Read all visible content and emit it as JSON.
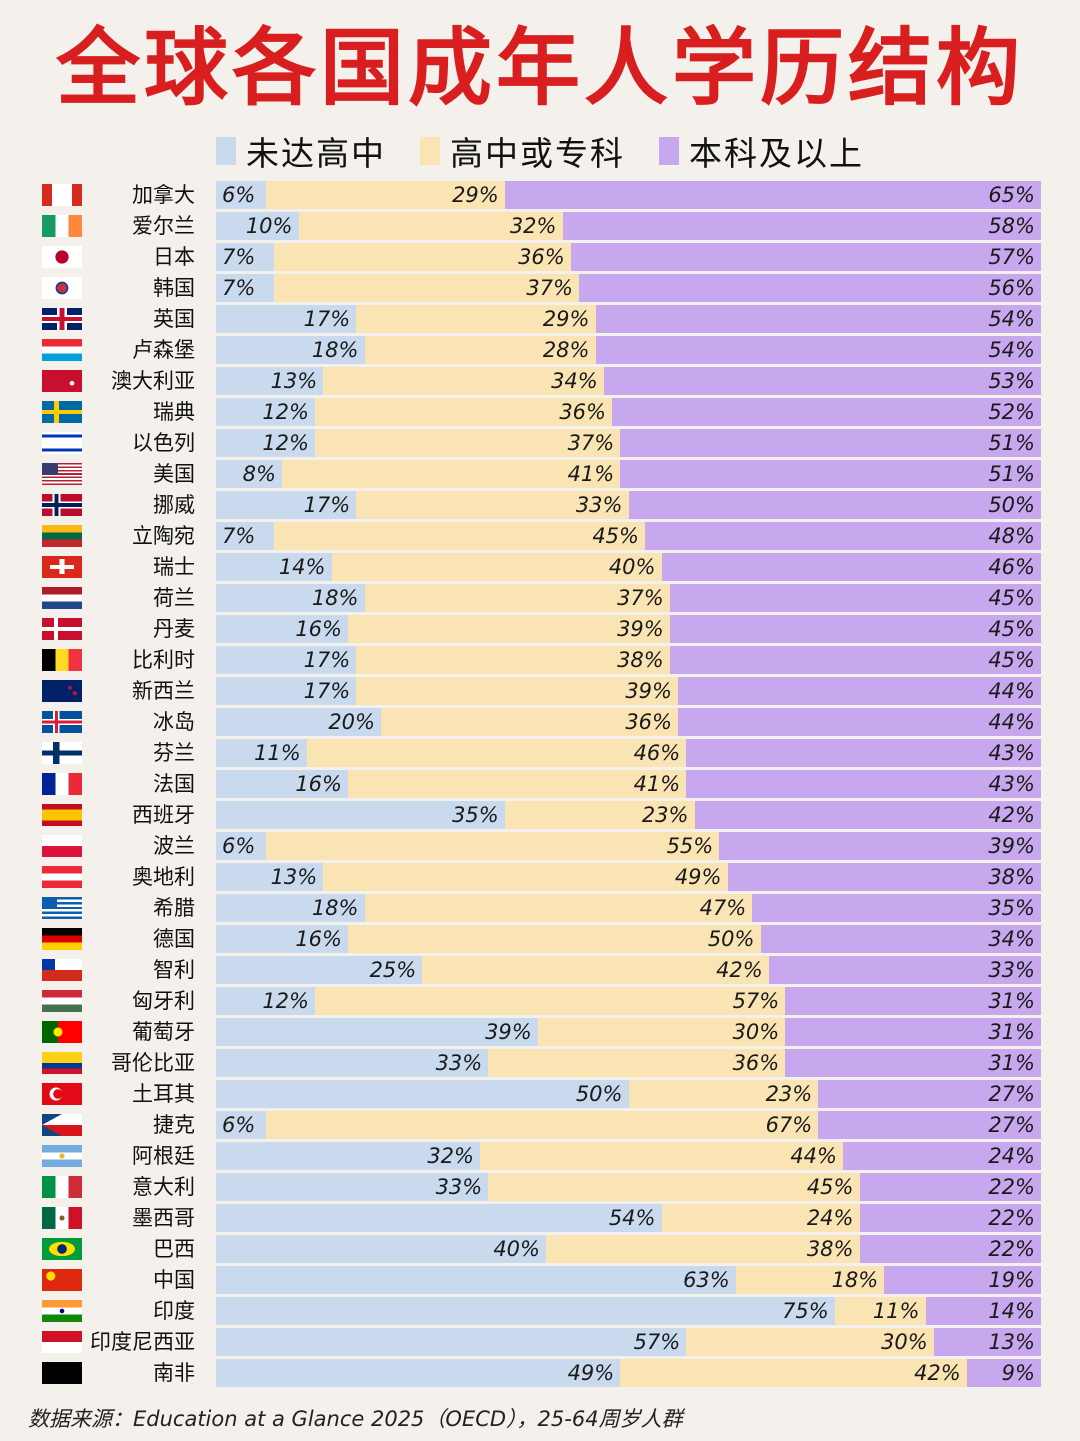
{
  "title": "全球各国成年人学历结构",
  "legend": {
    "items": [
      {
        "label": "未达高中",
        "color": "#c9daee"
      },
      {
        "label": "高中或专科",
        "color": "#fbe4b4"
      },
      {
        "label": "本科及以上",
        "color": "#c7a7ee"
      }
    ]
  },
  "source": "数据来源：Education at a Glance 2025（OECD），25-64周岁人群",
  "chart_data": {
    "type": "bar",
    "orientation": "horizontal-stacked-100",
    "title": "全球各国成年人学历结构",
    "series_names": [
      "未达高中",
      "高中或专科",
      "本科及以上"
    ],
    "colors": [
      "#c9daee",
      "#fbe4b4",
      "#c7a7ee"
    ],
    "rows": [
      {
        "country": "加拿大",
        "flag": "ca",
        "values": [
          6,
          29,
          65
        ]
      },
      {
        "country": "爱尔兰",
        "flag": "ie",
        "values": [
          10,
          32,
          58
        ]
      },
      {
        "country": "日本",
        "flag": "jp",
        "values": [
          7,
          36,
          57
        ]
      },
      {
        "country": "韩国",
        "flag": "kr",
        "values": [
          7,
          37,
          56
        ]
      },
      {
        "country": "英国",
        "flag": "gb",
        "values": [
          17,
          29,
          54
        ]
      },
      {
        "country": "卢森堡",
        "flag": "lu",
        "values": [
          18,
          28,
          54
        ]
      },
      {
        "country": "澳大利亚",
        "flag": "au",
        "values": [
          13,
          34,
          53
        ]
      },
      {
        "country": "瑞典",
        "flag": "se",
        "values": [
          12,
          36,
          52
        ]
      },
      {
        "country": "以色列",
        "flag": "il",
        "values": [
          12,
          37,
          51
        ]
      },
      {
        "country": "美国",
        "flag": "us",
        "values": [
          8,
          41,
          51
        ]
      },
      {
        "country": "挪威",
        "flag": "no",
        "values": [
          17,
          33,
          50
        ]
      },
      {
        "country": "立陶宛",
        "flag": "lt",
        "values": [
          7,
          45,
          48
        ]
      },
      {
        "country": "瑞士",
        "flag": "ch",
        "values": [
          14,
          40,
          46
        ]
      },
      {
        "country": "荷兰",
        "flag": "nl",
        "values": [
          18,
          37,
          45
        ]
      },
      {
        "country": "丹麦",
        "flag": "dk",
        "values": [
          16,
          39,
          45
        ]
      },
      {
        "country": "比利时",
        "flag": "be",
        "values": [
          17,
          38,
          45
        ]
      },
      {
        "country": "新西兰",
        "flag": "nz",
        "values": [
          17,
          39,
          44
        ]
      },
      {
        "country": "冰岛",
        "flag": "is",
        "values": [
          20,
          36,
          44
        ]
      },
      {
        "country": "芬兰",
        "flag": "fi",
        "values": [
          11,
          46,
          43
        ]
      },
      {
        "country": "法国",
        "flag": "fr",
        "values": [
          16,
          41,
          43
        ]
      },
      {
        "country": "西班牙",
        "flag": "es",
        "values": [
          35,
          23,
          42
        ]
      },
      {
        "country": "波兰",
        "flag": "pl",
        "values": [
          6,
          55,
          39
        ]
      },
      {
        "country": "奥地利",
        "flag": "at",
        "values": [
          13,
          49,
          38
        ]
      },
      {
        "country": "希腊",
        "flag": "gr",
        "values": [
          18,
          47,
          35
        ]
      },
      {
        "country": "德国",
        "flag": "de",
        "values": [
          16,
          50,
          34
        ]
      },
      {
        "country": "智利",
        "flag": "cl",
        "values": [
          25,
          42,
          33
        ]
      },
      {
        "country": "匈牙利",
        "flag": "hu",
        "values": [
          12,
          57,
          31
        ]
      },
      {
        "country": "葡萄牙",
        "flag": "pt",
        "values": [
          39,
          30,
          31
        ]
      },
      {
        "country": "哥伦比亚",
        "flag": "co",
        "values": [
          33,
          36,
          31
        ]
      },
      {
        "country": "土耳其",
        "flag": "tr",
        "values": [
          50,
          23,
          27
        ]
      },
      {
        "country": "捷克",
        "flag": "cz",
        "values": [
          6,
          67,
          27
        ]
      },
      {
        "country": "阿根廷",
        "flag": "ar",
        "values": [
          32,
          44,
          24
        ]
      },
      {
        "country": "意大利",
        "flag": "it",
        "values": [
          33,
          45,
          22
        ]
      },
      {
        "country": "墨西哥",
        "flag": "mx",
        "values": [
          54,
          24,
          22
        ]
      },
      {
        "country": "巴西",
        "flag": "br",
        "values": [
          40,
          38,
          22
        ]
      },
      {
        "country": "中国",
        "flag": "cn",
        "values": [
          63,
          18,
          19
        ]
      },
      {
        "country": "印度",
        "flag": "in",
        "values": [
          75,
          11,
          14
        ]
      },
      {
        "country": "印度尼西亚",
        "flag": "id",
        "values": [
          57,
          30,
          13
        ]
      },
      {
        "country": "南非",
        "flag": "za",
        "values": [
          49,
          42,
          9
        ]
      }
    ]
  }
}
